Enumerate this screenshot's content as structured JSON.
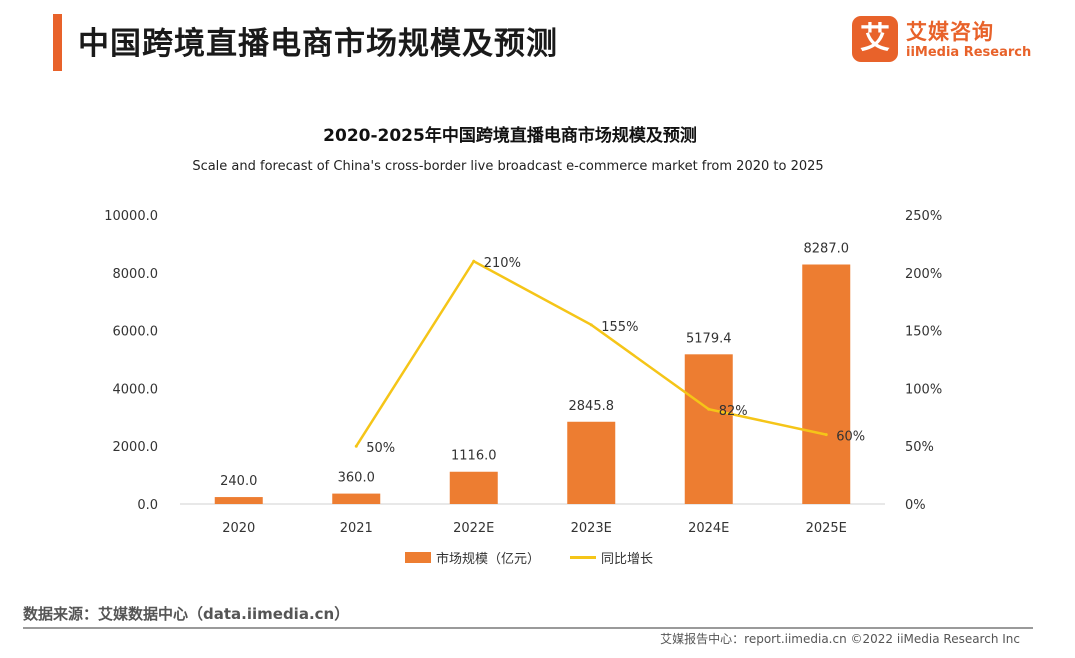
{
  "header": {
    "title": "中国跨境直播电商市场规模及预测",
    "accent_color": "#e8622a"
  },
  "brand": {
    "mark": "艾",
    "name": "艾媒咨询",
    "sub": "iiMedia Research",
    "color": "#e8622a"
  },
  "chart_data": {
    "type": "bar+line",
    "title": "2020-2025年中国跨境直播电商市场规模及预测",
    "subtitle": "Scale and forecast of China's cross-border live broadcast e-commerce market from 2020 to 2025",
    "categories": [
      "2020",
      "2021",
      "2022E",
      "2023E",
      "2024E",
      "2025E"
    ],
    "series": [
      {
        "name": "市场规模（亿元）",
        "type": "bar",
        "axis": "left",
        "color": "#ed7d31",
        "values": [
          240.0,
          360.0,
          1116.0,
          2845.8,
          5179.4,
          8287.0
        ],
        "labels": [
          "240.0",
          "360.0",
          "1116.0",
          "2845.8",
          "5179.4",
          "8287.0"
        ]
      },
      {
        "name": "同比增长",
        "type": "line",
        "axis": "right",
        "color": "#f5c518",
        "values": [
          null,
          50,
          210,
          155,
          82,
          60
        ],
        "labels": [
          "",
          "50%",
          "210%",
          "155%",
          "82%",
          "60%"
        ]
      }
    ],
    "y_left": {
      "range": [
        0,
        10000
      ],
      "ticks": [
        "0.0",
        "2000.0",
        "4000.0",
        "6000.0",
        "8000.0",
        "10000.0"
      ]
    },
    "y_right": {
      "range": [
        0,
        250
      ],
      "ticks": [
        "0%",
        "50%",
        "100%",
        "150%",
        "200%",
        "250%"
      ]
    },
    "grid": false,
    "legend_position": "bottom"
  },
  "source": "数据来源：艾媒数据中心（data.iimedia.cn）",
  "footer": "艾媒报告中心：report.iimedia.cn  ©2022  iiMedia Research  Inc"
}
